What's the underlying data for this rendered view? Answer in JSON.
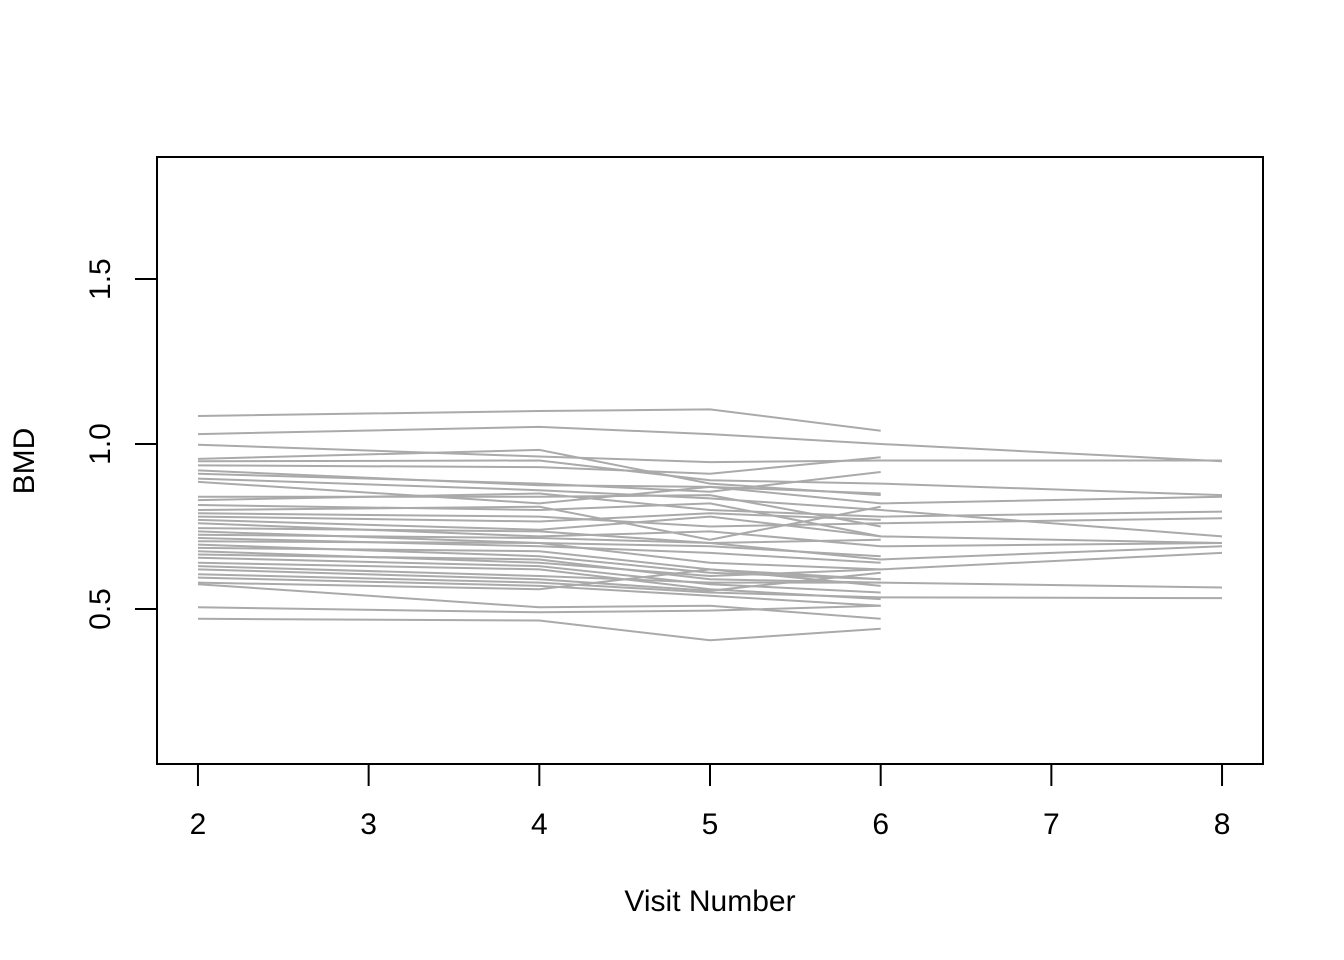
{
  "chart_data": {
    "type": "line",
    "title": "",
    "xlabel": "Visit Number",
    "ylabel": "BMD",
    "xlim": [
      1.76,
      8.24
    ],
    "ylim": [
      0.03,
      1.87
    ],
    "x_ticks": [
      2,
      3,
      4,
      5,
      6,
      7,
      8
    ],
    "x_tick_labels": [
      "2",
      "3",
      "4",
      "5",
      "6",
      "7",
      "8"
    ],
    "y_ticks": [
      0.5,
      1.0,
      1.5
    ],
    "y_tick_labels": [
      "0.5",
      "1.0",
      "1.5"
    ],
    "grid": false,
    "legend": "none",
    "line_color": "#aaaaaa",
    "series": [
      {
        "x": [
          2,
          4,
          5,
          6
        ],
        "values": [
          1.085,
          1.1,
          1.105,
          1.04
        ]
      },
      {
        "x": [
          2,
          4,
          5,
          6,
          8
        ],
        "values": [
          1.03,
          1.052,
          1.03,
          1.0,
          0.948
        ]
      },
      {
        "x": [
          2,
          4,
          5,
          6,
          8
        ],
        "values": [
          0.998,
          0.962,
          0.945,
          0.95,
          0.95
        ]
      },
      {
        "x": [
          2,
          4,
          5,
          6
        ],
        "values": [
          0.955,
          0.982,
          0.88,
          0.845
        ]
      },
      {
        "x": [
          2,
          4,
          5,
          6,
          8
        ],
        "values": [
          0.948,
          0.95,
          0.89,
          0.88,
          0.845
        ]
      },
      {
        "x": [
          2,
          4,
          5,
          6
        ],
        "values": [
          0.935,
          0.93,
          0.91,
          0.96
        ]
      },
      {
        "x": [
          2,
          4,
          5,
          6,
          8
        ],
        "values": [
          0.92,
          0.875,
          0.87,
          0.82,
          0.84
        ]
      },
      {
        "x": [
          2,
          4,
          5,
          6
        ],
        "values": [
          0.91,
          0.88,
          0.855,
          0.915
        ]
      },
      {
        "x": [
          2,
          4,
          5,
          6,
          8
        ],
        "values": [
          0.895,
          0.86,
          0.835,
          0.8,
          0.72
        ]
      },
      {
        "x": [
          2,
          4,
          5,
          6
        ],
        "values": [
          0.885,
          0.82,
          0.87,
          0.85
        ]
      },
      {
        "x": [
          2,
          4,
          5,
          6
        ],
        "values": [
          0.84,
          0.84,
          0.845,
          0.75
        ]
      },
      {
        "x": [
          2,
          4,
          5,
          6,
          8
        ],
        "values": [
          0.83,
          0.85,
          0.8,
          0.78,
          0.795
        ]
      },
      {
        "x": [
          2,
          4,
          5,
          6,
          8
        ],
        "values": [
          0.815,
          0.8,
          0.82,
          0.72,
          0.7
        ]
      },
      {
        "x": [
          2,
          4,
          5,
          6
        ],
        "values": [
          0.8,
          0.81,
          0.71,
          0.81
        ]
      },
      {
        "x": [
          2,
          4,
          5,
          6,
          8
        ],
        "values": [
          0.79,
          0.78,
          0.75,
          0.76,
          0.775
        ]
      },
      {
        "x": [
          2,
          4,
          5,
          6
        ],
        "values": [
          0.78,
          0.765,
          0.79,
          0.77
        ]
      },
      {
        "x": [
          2,
          4,
          5,
          6
        ],
        "values": [
          0.77,
          0.74,
          0.78,
          0.72
        ]
      },
      {
        "x": [
          2,
          4,
          5,
          6,
          8
        ],
        "values": [
          0.76,
          0.72,
          0.735,
          0.69,
          0.7
        ]
      },
      {
        "x": [
          2,
          4,
          5,
          6
        ],
        "values": [
          0.745,
          0.735,
          0.7,
          0.71
        ]
      },
      {
        "x": [
          2,
          4,
          5,
          6
        ],
        "values": [
          0.735,
          0.7,
          0.69,
          0.66
        ]
      },
      {
        "x": [
          2,
          4,
          5,
          6,
          8
        ],
        "values": [
          0.725,
          0.715,
          0.7,
          0.65,
          0.69
        ]
      },
      {
        "x": [
          2,
          4,
          5,
          6
        ],
        "values": [
          0.715,
          0.69,
          0.67,
          0.64
        ]
      },
      {
        "x": [
          2,
          4,
          5,
          6,
          8
        ],
        "values": [
          0.705,
          0.7,
          0.64,
          0.62,
          0.67
        ]
      },
      {
        "x": [
          2,
          4,
          5,
          6
        ],
        "values": [
          0.695,
          0.66,
          0.61,
          0.59
        ]
      },
      {
        "x": [
          2,
          4,
          5,
          6
        ],
        "values": [
          0.685,
          0.675,
          0.62,
          0.57
        ]
      },
      {
        "x": [
          2,
          4,
          5,
          6
        ],
        "values": [
          0.675,
          0.64,
          0.6,
          0.62
        ]
      },
      {
        "x": [
          2,
          4,
          5,
          6
        ],
        "values": [
          0.665,
          0.65,
          0.59,
          0.58
        ]
      },
      {
        "x": [
          2,
          4,
          5,
          6
        ],
        "values": [
          0.655,
          0.63,
          0.575,
          0.55
        ]
      },
      {
        "x": [
          2,
          4,
          5,
          6
        ],
        "values": [
          0.64,
          0.62,
          0.56,
          0.53
        ]
      },
      {
        "x": [
          2,
          4,
          5,
          6,
          8
        ],
        "values": [
          0.63,
          0.6,
          0.58,
          0.58,
          0.565
        ]
      },
      {
        "x": [
          2,
          4,
          5,
          6
        ],
        "values": [
          0.62,
          0.59,
          0.555,
          0.61
        ]
      },
      {
        "x": [
          2,
          4,
          5,
          6,
          8
        ],
        "values": [
          0.605,
          0.58,
          0.55,
          0.535,
          0.533
        ]
      },
      {
        "x": [
          2,
          4,
          5,
          6
        ],
        "values": [
          0.595,
          0.57,
          0.54,
          0.51
        ]
      },
      {
        "x": [
          2,
          4,
          5,
          6
        ],
        "values": [
          0.58,
          0.56,
          0.62,
          0.59
        ]
      },
      {
        "x": [
          2,
          4,
          5,
          6
        ],
        "values": [
          0.575,
          0.505,
          0.51,
          0.47
        ]
      },
      {
        "x": [
          2,
          4,
          5,
          6
        ],
        "values": [
          0.505,
          0.49,
          0.495,
          0.51
        ]
      },
      {
        "x": [
          2,
          4,
          5,
          6
        ],
        "values": [
          0.47,
          0.465,
          0.405,
          0.44
        ]
      }
    ]
  }
}
